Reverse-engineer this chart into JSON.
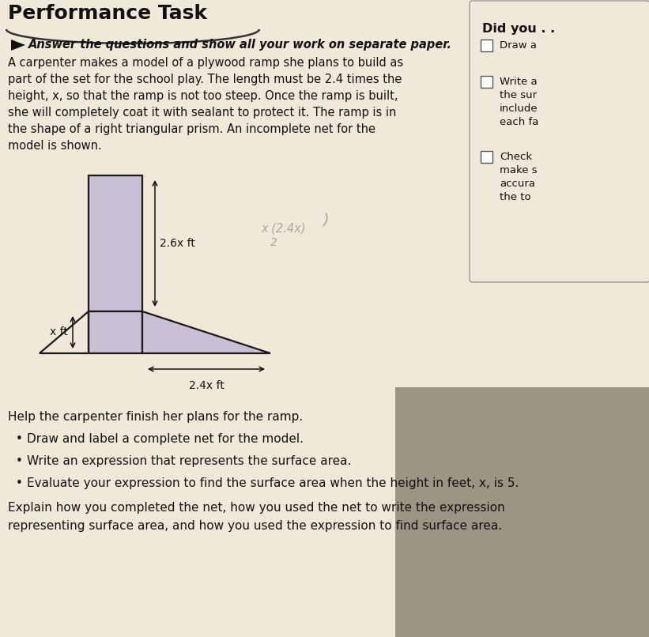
{
  "bg_color": "#f0e8d8",
  "title": "Performance Task",
  "subtitle": "Answer the questions and show all your work on separate paper.",
  "body_lines": [
    "A carpenter makes a model of a plywood ramp she plans to build as",
    "part of the set for the school play. The length must be 2.4 times the",
    "height, x, so that the ramp is not too steep. Once the ramp is built,",
    "she will completely coat it with sealant to protect it. The ramp is in",
    "the shape of a right triangular prism. An incomplete net for the",
    "model is shown."
  ],
  "help_text": "Help the carpenter finish her plans for the ramp.",
  "bullet1": "Draw and label a complete net for the model.",
  "bullet2": "Write an expression that represents the surface area.",
  "bullet3": "Evaluate your expression to find the surface area when the height in feet, x, is 5.",
  "explain_line1": "Explain how you completed the net, how you used the net to write the expression",
  "explain_line2": "representing surface area, and how you used the expression to find surface area.",
  "did_you_title": "Did you . .",
  "check1_text": "Draw a",
  "check2_texts": [
    "Write a",
    "the sur",
    "include",
    "each fa"
  ],
  "check3_texts": [
    "Check",
    "make s",
    "accura",
    "the to"
  ],
  "dim_26x": "2.6x ft",
  "dim_24x": "2.4x ft",
  "dim_xft": "x ft",
  "shape_fill": "#c8c0d4",
  "shape_edge": "#1a1a1a",
  "handwrite1": "x (2.4x)",
  "handwrite2": "2",
  "shadow_color": "#5a5040"
}
